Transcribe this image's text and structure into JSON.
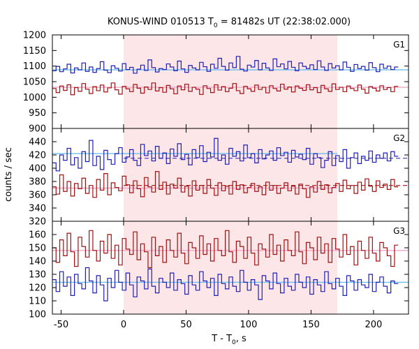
{
  "chart_data": {
    "type": "line",
    "title": "KONUS-WIND 010513 T0 = 81482s UT (22:38:02.000)",
    "title_parts": {
      "pre": "KONUS-WIND 010513 T",
      "sub": "0",
      "post": " = 81482s UT (22:38:02.000)"
    },
    "xlabel_parts": {
      "pre": "T - T",
      "sub": "0",
      "post": ", s"
    },
    "ylabel": "counts / sec",
    "xlim": [
      -57,
      228
    ],
    "x_ticks": [
      -50,
      0,
      50,
      100,
      150,
      200
    ],
    "x_tick_labels": [
      "-50",
      "0",
      "50",
      "100",
      "150",
      "200"
    ],
    "highlight_interval": [
      0,
      171
    ],
    "highlight_color": "#fde6e8",
    "bin_width": 2.944,
    "bin_start": -57,
    "panels": [
      {
        "label": "G1",
        "ylim": [
          900,
          1200
        ],
        "y_ticks": [
          900,
          950,
          1000,
          1050,
          1100,
          1150,
          1200
        ],
        "y_tick_labels": [
          "900",
          "950",
          "1000",
          "1050",
          "1100",
          "1150",
          "1200"
        ],
        "series": [
          {
            "color": "#1f1fb4",
            "background_level": 1088,
            "background_color": "#6bbef0",
            "dashed_level": null,
            "values": [
              1085,
              1099,
              1082,
              1091,
              1106,
              1078,
              1094,
              1088,
              1110,
              1083,
              1097,
              1080,
              1092,
              1114,
              1087,
              1079,
              1101,
              1093,
              1084,
              1108,
              1089,
              1096,
              1077,
              1090,
              1103,
              1086,
              1120,
              1095,
              1081,
              1092,
              1089,
              1107,
              1097,
              1085,
              1116,
              1091,
              1080,
              1102,
              1094,
              1088,
              1112,
              1098,
              1083,
              1106,
              1093,
              1125,
              1099,
              1087,
              1110,
              1095,
              1131,
              1090,
              1084,
              1103,
              1097,
              1118,
              1088,
              1109,
              1094,
              1086,
              1123,
              1098,
              1107,
              1091,
              1115,
              1096,
              1085,
              1110,
              1099,
              1092,
              1104,
              1089,
              1117,
              1097,
              1086,
              1108,
              1094,
              1101,
              1088,
              1113,
              1096,
              1083,
              1105,
              1092,
              1099,
              1087,
              1111,
              1095,
              1082,
              1106,
              1093,
              1100,
              1089,
              1097
            ]
          },
          {
            "color": "#a01010",
            "background_level": 1032,
            "background_color": "#f0a6c8",
            "dashed_level": null,
            "values": [
              1028,
              1015,
              1036,
              1022,
              1040,
              1008,
              1031,
              1019,
              1044,
              1026,
              1012,
              1034,
              1021,
              1039,
              1017,
              1030,
              1046,
              1024,
              1010,
              1035,
              1027,
              1018,
              1041,
              1029,
              1013,
              1033,
              1025,
              1046,
              1020,
              1031,
              1016,
              1038,
              1027,
              1011,
              1036,
              1024,
              1042,
              1019,
              1032,
              1026,
              1009,
              1037,
              1028,
              1015,
              1040,
              1023,
              1034,
              1018,
              1029,
              1044,
              1021,
              1012,
              1035,
              1027,
              1019,
              1039,
              1025,
              1032,
              1014,
              1037,
              1028,
              1020,
              1042,
              1026,
              1033,
              1017,
              1036,
              1029,
              1022,
              1040,
              1024,
              1031,
              1015,
              1038,
              1027,
              1019,
              1043,
              1025,
              1032,
              1018,
              1036,
              1028,
              1021,
              1039,
              1026,
              1013,
              1034,
              1029,
              1020,
              1037,
              1025,
              1031,
              1018,
              1035
            ]
          }
        ]
      },
      {
        "label": "G2",
        "ylim": [
          320,
          460
        ],
        "y_ticks": [
          320,
          340,
          360,
          380,
          400,
          420,
          440
        ],
        "y_tick_labels": [
          "320",
          "340",
          "360",
          "380",
          "400",
          "420",
          "440"
        ],
        "series": [
          {
            "color": "#1f1fb4",
            "background_level": 422,
            "background_color": "#6bbef0",
            "dashed_level": 415,
            "values": [
              408,
              396,
              420,
              412,
              430,
              405,
              416,
              400,
              425,
              410,
              442,
              404,
              418,
              398,
              427,
              413,
              406,
              422,
              431,
              409,
              417,
              428,
              412,
              404,
              436,
              419,
              426,
              411,
              433,
              415,
              423,
              407,
              429,
              418,
              437,
              413,
              421,
              405,
              428,
              416,
              434,
              410,
              424,
              417,
              445,
              412,
              420,
              406,
              430,
              418,
              425,
              411,
              435,
              416,
              422,
              408,
              428,
              414,
              420,
              426,
              412,
              431,
              419,
              424,
              409,
              427,
              417,
              421,
              413,
              430,
              406,
              422,
              416,
              401,
              412,
              425,
              404,
              419,
              410,
              428,
              400,
              416,
              423,
              407,
              418,
              412,
              426,
              409,
              420,
              415,
              423,
              411,
              425,
              418
            ]
          },
          {
            "color": "#a01010",
            "background_level": 370,
            "background_color": "#f0a6c8",
            "dashed_level": 374,
            "values": [
              372,
              361,
              390,
              365,
              380,
              358,
              377,
              369,
              385,
              362,
              374,
              356,
              383,
              367,
              392,
              360,
              378,
              371,
              366,
              388,
              375,
              363,
              381,
              369,
              357,
              386,
              372,
              364,
              395,
              368,
              379,
              361,
              376,
              370,
              385,
              364,
              373,
              358,
              381,
              367,
              374,
              362,
              383,
              370,
              359,
              378,
              366,
              373,
              361,
              380,
              368,
              375,
              363,
              371,
              377,
              365,
              372,
              360,
              379,
              367,
              374,
              362,
              370,
              378,
              366,
              373,
              361,
              376,
              369,
              356,
              372,
              364,
              380,
              368,
              375,
              363,
              371,
              377,
              365,
              382,
              369,
              374,
              362,
              379,
              367,
              384,
              373,
              365,
              381,
              371,
              376,
              368,
              383,
              372
            ]
          }
        ]
      },
      {
        "label": "G3",
        "ylim": [
          100,
          170
        ],
        "y_ticks": [
          100,
          110,
          120,
          130,
          140,
          150,
          160
        ],
        "y_tick_labels": [
          "100",
          "110",
          "120",
          "130",
          "140",
          "150",
          "160"
        ],
        "series": [
          {
            "color": "#a01010",
            "background_level": 148,
            "background_color": "#f0a6c8",
            "dashed_level": null,
            "values": [
              150,
              139,
              156,
              144,
              161,
              147,
              136,
              158,
              151,
              143,
              163,
              148,
              140,
              155,
              146,
              160,
              142,
              152,
              137,
              157,
              149,
              145,
              162,
              141,
              153,
              147,
              135,
              158,
              144,
              151,
              139,
              156,
              148,
              143,
              161,
              146,
              138,
              154,
              150,
              142,
              159,
              145,
              153,
              140,
              157,
              148,
              144,
              163,
              147,
              139,
              155,
              151,
              142,
              158,
              146,
              137,
              153,
              149,
              143,
              160,
              145,
              152,
              140,
              156,
              148,
              144,
              162,
              147,
              138,
              154,
              150,
              141,
              158,
              146,
              153,
              139,
              157,
              149,
              143,
              160,
              145,
              151,
              137,
              155,
              148,
              142,
              158,
              146,
              140,
              154,
              150,
              144,
              136,
              152
            ]
          },
          {
            "color": "#1f1fb4",
            "background_level": 124,
            "background_color": "#6bbef0",
            "dashed_level": null,
            "values": [
              126,
              117,
              132,
              121,
              128,
              114,
              130,
              123,
              119,
              135,
              125,
              116,
              129,
              122,
              110,
              127,
              120,
              133,
              124,
              118,
              131,
              122,
              113,
              128,
              125,
              119,
              134,
              121,
              116,
              127,
              124,
              120,
              131,
              118,
              126,
              123,
              115,
              129,
              122,
              118,
              132,
              125,
              120,
              127,
              114,
              130,
              123,
              119,
              128,
              121,
              117,
              133,
              124,
              118,
              126,
              122,
              111,
              129,
              125,
              119,
              131,
              123,
              116,
              127,
              121,
              118,
              130,
              124,
              120,
              128,
              115,
              126,
              122,
              117,
              132,
              123,
              119,
              127,
              121,
              114,
              129,
              125,
              118,
              126,
              122,
              120,
              130,
              117,
              124,
              128,
              121,
              116,
              125,
              123
            ]
          }
        ]
      }
    ]
  }
}
